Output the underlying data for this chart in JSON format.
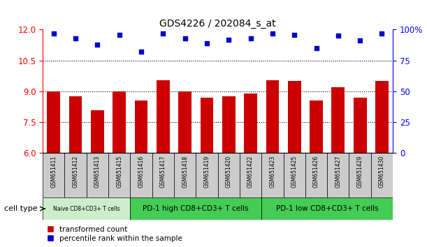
{
  "title": "GDS4226 / 202084_s_at",
  "samples": [
    "GSM651411",
    "GSM651412",
    "GSM651413",
    "GSM651415",
    "GSM651416",
    "GSM651417",
    "GSM651418",
    "GSM651419",
    "GSM651420",
    "GSM651422",
    "GSM651423",
    "GSM651425",
    "GSM651426",
    "GSM651427",
    "GSM651429",
    "GSM651430"
  ],
  "bar_values": [
    9.0,
    8.75,
    8.1,
    9.0,
    8.55,
    9.55,
    9.0,
    8.7,
    8.75,
    8.9,
    9.55,
    9.5,
    8.55,
    9.2,
    8.7,
    9.5
  ],
  "percentile_values": [
    97,
    93,
    88,
    96,
    82,
    97,
    93,
    89,
    92,
    93,
    97,
    96,
    85,
    95,
    91,
    97
  ],
  "bar_color": "#cc0000",
  "dot_color": "#0000cc",
  "ylim_left": [
    6,
    12
  ],
  "ylim_right": [
    0,
    100
  ],
  "yticks_left": [
    6,
    7.5,
    9,
    10.5,
    12
  ],
  "yticks_right": [
    0,
    25,
    50,
    75,
    100
  ],
  "grid_values": [
    7.5,
    9.0,
    10.5
  ],
  "group_configs": [
    {
      "start": 0,
      "end": 4,
      "color": "#cceecc",
      "label": "Naive CD8+CD3+ T cells",
      "fontsize": 5.5
    },
    {
      "start": 4,
      "end": 10,
      "color": "#44cc55",
      "label": "PD-1 high CD8+CD3+ T cells",
      "fontsize": 7.5
    },
    {
      "start": 10,
      "end": 16,
      "color": "#44cc55",
      "label": "PD-1 low CD8+CD3+ T cells",
      "fontsize": 7.5
    }
  ],
  "cell_type_label": "cell type",
  "legend_bar_label": "transformed count",
  "legend_dot_label": "percentile rank within the sample",
  "bar_width": 0.6,
  "sample_box_color": "#cccccc"
}
